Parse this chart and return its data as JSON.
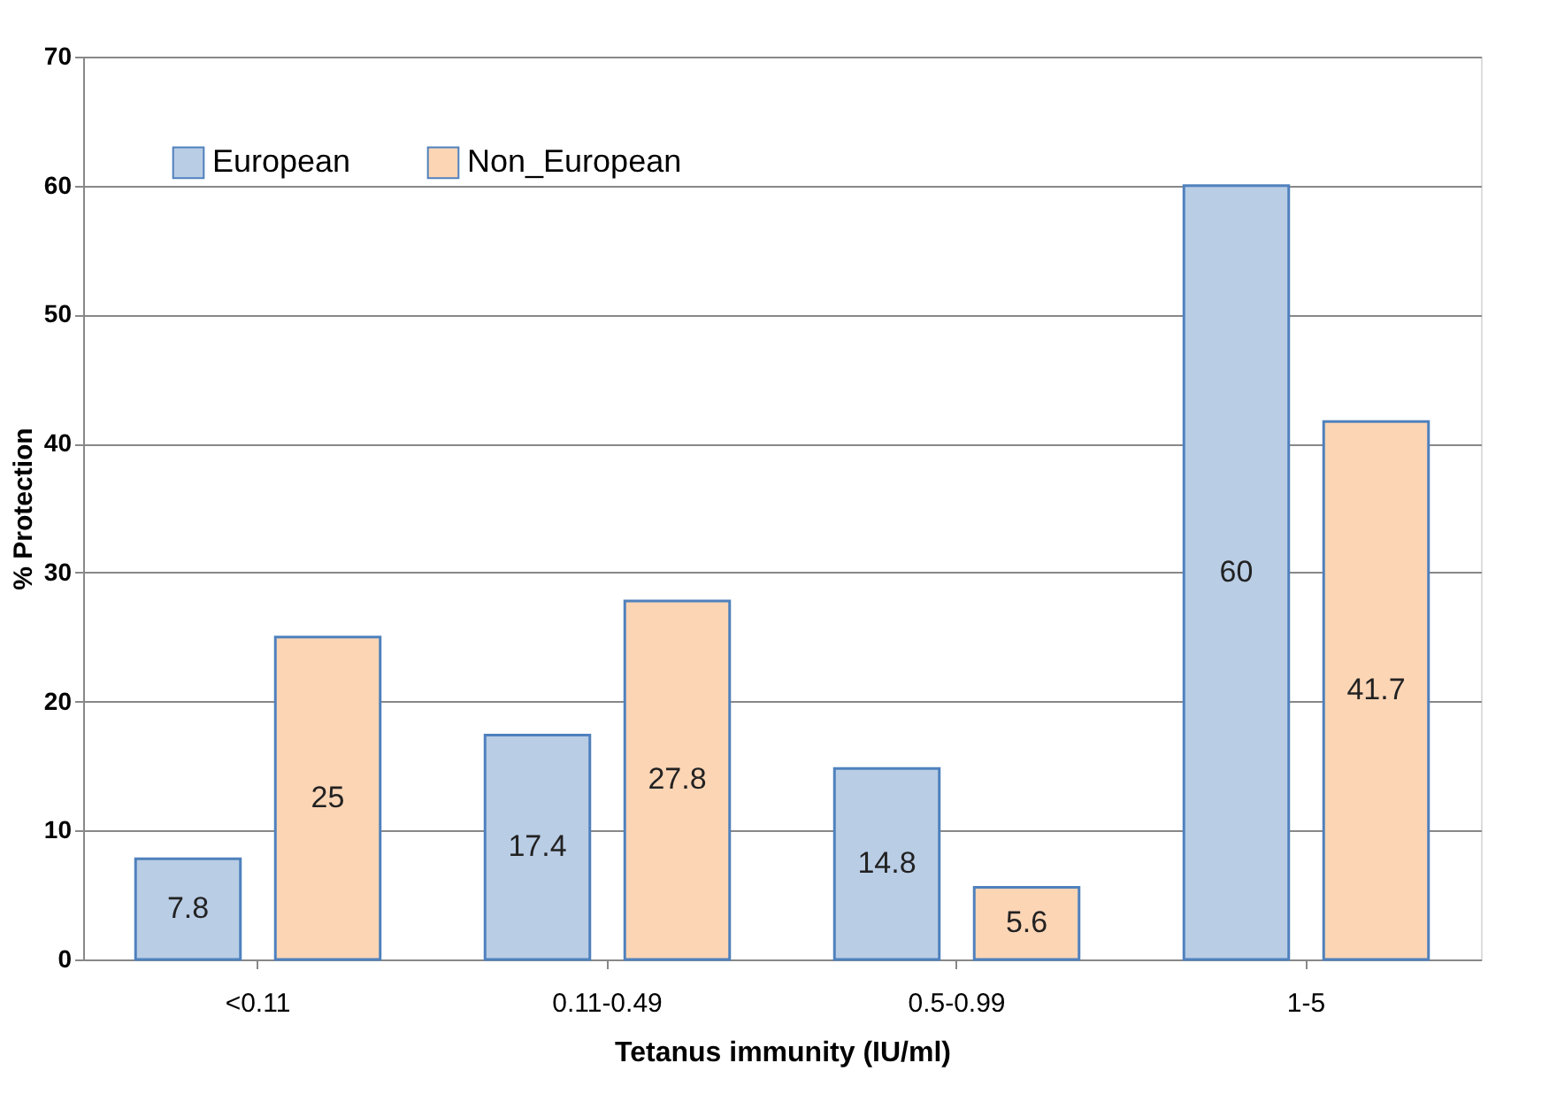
{
  "chart_data": {
    "type": "bar",
    "xlabel": "Tetanus immunity (IU/ml)",
    "ylabel": "% Protection",
    "categories": [
      "<0.11",
      "0.11-0.49",
      "0.5-0.99",
      "1-5"
    ],
    "series": [
      {
        "name": "European",
        "color": "#b9cde5",
        "values": [
          7.8,
          17.4,
          14.8,
          60
        ]
      },
      {
        "name": "Non_European",
        "color": "#fcd5b5",
        "values": [
          25,
          27.8,
          5.6,
          41.7
        ]
      }
    ],
    "ylim": [
      0,
      70
    ],
    "yticks": [
      0,
      10,
      20,
      30,
      40,
      50,
      60,
      70
    ],
    "grid": "y",
    "legend": "top left",
    "data_labels": true
  }
}
